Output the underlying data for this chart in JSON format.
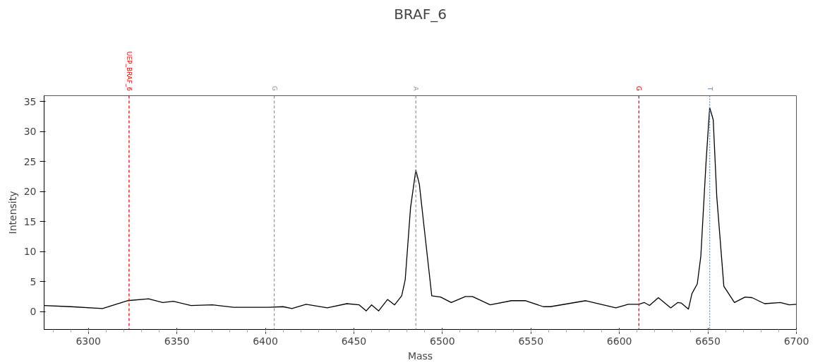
{
  "chart_data": {
    "type": "line",
    "title": "BRAF_6",
    "xlabel": "Mass",
    "ylabel": "Intensity",
    "x": [
      6275,
      6290,
      6308,
      6322,
      6334,
      6342,
      6348,
      6358,
      6370,
      6382,
      6402,
      6410,
      6415,
      6423,
      6435,
      6446,
      6453,
      6457,
      6460,
      6464,
      6469,
      6473,
      6477,
      6479,
      6482,
      6485,
      6487,
      6490,
      6494,
      6499,
      6505,
      6513,
      6517,
      6527,
      6539,
      6547,
      6557,
      6561,
      6581,
      6598,
      6605,
      6611,
      6614,
      6617,
      6622,
      6629,
      6633,
      6635,
      6639,
      6641,
      6644,
      6646,
      6649,
      6651,
      6653,
      6655,
      6659,
      6665,
      6671,
      6675,
      6682,
      6691,
      6696,
      6700
    ],
    "series": [
      {
        "color": "#000000",
        "values": [
          1.0,
          0.8,
          0.5,
          1.8,
          2.1,
          1.5,
          1.7,
          1.0,
          1.1,
          0.7,
          0.7,
          0.8,
          0.5,
          1.2,
          0.6,
          1.3,
          1.1,
          0.1,
          1.1,
          0.1,
          2.0,
          1.1,
          2.6,
          5.3,
          17.3,
          23.6,
          21.2,
          13.2,
          2.6,
          2.4,
          1.5,
          2.5,
          2.5,
          1.1,
          1.8,
          1.8,
          0.8,
          0.8,
          1.8,
          0.6,
          1.2,
          1.2,
          1.5,
          1.0,
          2.3,
          0.6,
          1.5,
          1.4,
          0.4,
          3.0,
          4.6,
          9.2,
          25.2,
          34.0,
          32.0,
          19.2,
          4.2,
          1.5,
          2.4,
          2.3,
          1.3,
          1.5,
          1.1,
          1.2
        ]
      }
    ],
    "xlim": [
      6275,
      6700
    ],
    "ylim": [
      -3,
      36
    ],
    "xticks": [
      6300,
      6350,
      6400,
      6450,
      6500,
      6550,
      6600,
      6650,
      6700
    ],
    "yticks": [
      0,
      5,
      10,
      15,
      20,
      25,
      30,
      35
    ],
    "grid": false,
    "marker": "none",
    "line_style": "solid",
    "ref_lines": [
      {
        "axis": "x",
        "value": 6323,
        "label": "UEP_BRAF_6",
        "color": "#ff0000",
        "line_style": "dashed"
      },
      {
        "axis": "x",
        "value": 6405,
        "label": "G",
        "color": "#999999",
        "line_style": "dashed"
      },
      {
        "axis": "x",
        "value": 6485,
        "label": "A",
        "color": "#999999",
        "line_style": "dashed"
      },
      {
        "axis": "x",
        "value": 6611,
        "label": "G",
        "color": "#ff0000",
        "line_style": "dashed"
      },
      {
        "axis": "x",
        "value": 6651,
        "label": "T",
        "color": "#3399ff",
        "line_style": "dotted"
      }
    ]
  }
}
